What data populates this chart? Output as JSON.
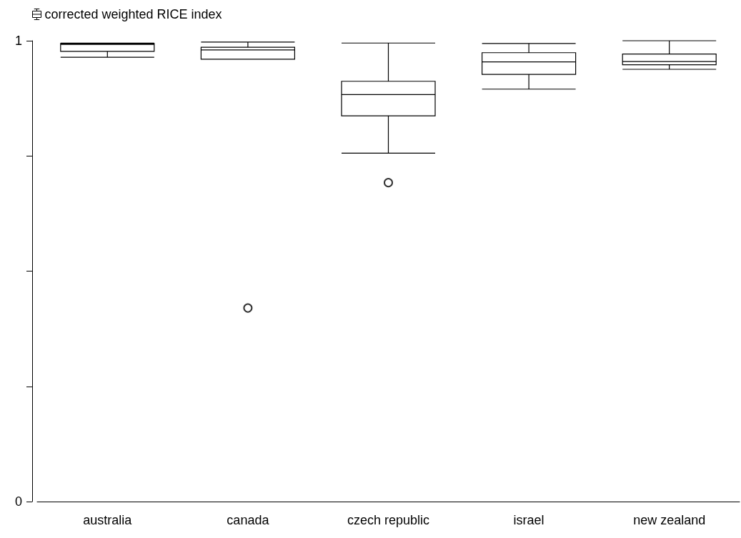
{
  "chart_data": {
    "type": "box",
    "categories": [
      "australia",
      "canada",
      "czech republic",
      "israel",
      "new zealand"
    ],
    "series": [
      {
        "name": "corrected weighted RICE index",
        "color": "#000000",
        "boxes": [
          {
            "low": 0.964,
            "q1": 0.977,
            "median": 0.992,
            "q3": 0.994,
            "high": 0.995
          },
          {
            "low": 0.96,
            "q1": 0.96,
            "median": 0.98,
            "q3": 0.986,
            "high": 0.997,
            "outliers": [
              0.42
            ]
          },
          {
            "low": 0.756,
            "q1": 0.837,
            "median": 0.883,
            "q3": 0.912,
            "high": 0.995,
            "outliers": [
              0.692
            ]
          },
          {
            "low": 0.895,
            "q1": 0.927,
            "median": 0.954,
            "q3": 0.974,
            "high": 0.994
          },
          {
            "low": 0.938,
            "q1": 0.948,
            "median": 0.955,
            "q3": 0.971,
            "high": 1.0
          }
        ]
      }
    ],
    "ylim": [
      0,
      1
    ],
    "yticks": [
      0,
      {
        "value": 0.25,
        "label": null
      },
      {
        "value": 0.5,
        "label": null
      },
      {
        "value": 0.75,
        "label": null
      },
      1
    ],
    "legend": "top left"
  }
}
